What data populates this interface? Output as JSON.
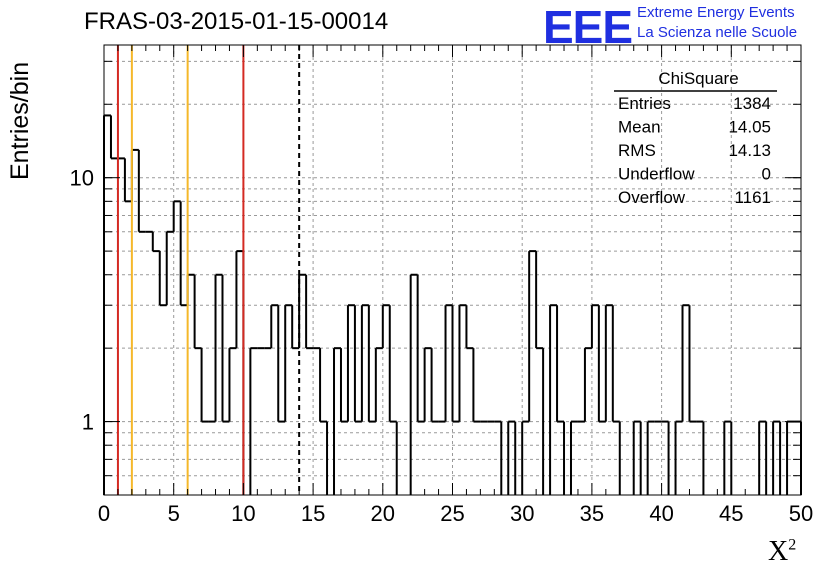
{
  "title": "FRAS-03-2015-01-15-00014",
  "logo": {
    "mark": "EEE",
    "line1": "Extreme Energy Events",
    "line2": "La Scienza nelle Scuole",
    "color": "#1f2fe0"
  },
  "stats": {
    "name": "ChiSquare",
    "rows": [
      {
        "label": "Entries",
        "value": "1384"
      },
      {
        "label": "Mean",
        "value": "14.05"
      },
      {
        "label": "RMS",
        "value": "14.13"
      },
      {
        "label": "Underflow",
        "value": "0"
      },
      {
        "label": "Overflow",
        "value": "1161"
      }
    ]
  },
  "chart_data": {
    "type": "histogram",
    "xlabel": "X",
    "xlabel_sup": "2",
    "ylabel": "Entries/bin",
    "xlim": [
      0,
      50
    ],
    "ylim": [
      0.5,
      35
    ],
    "yscale": "log",
    "bin_width": 0.5,
    "x_ticks": [
      0,
      5,
      10,
      15,
      20,
      25,
      30,
      35,
      40,
      45,
      50
    ],
    "y_ticks": [
      1,
      10
    ],
    "grid": true,
    "counts": [
      18,
      12,
      12,
      8,
      13,
      6,
      6,
      5,
      3,
      6,
      8,
      3,
      4,
      2,
      1,
      1,
      4,
      1,
      2,
      5,
      0,
      2,
      2,
      2,
      3,
      1,
      3,
      2,
      4,
      2,
      2,
      1,
      0,
      2,
      1,
      3,
      1,
      3,
      1,
      2,
      3,
      1,
      0,
      0,
      4,
      1,
      2,
      1,
      1,
      3,
      1,
      3,
      2,
      1,
      1,
      1,
      1,
      0,
      1,
      0,
      1,
      5,
      2,
      0,
      3,
      1,
      0,
      1,
      1,
      2,
      3,
      1,
      3,
      1,
      0,
      0,
      1,
      0,
      1,
      1,
      1,
      0,
      1,
      3,
      1,
      1,
      0,
      0,
      0,
      1,
      0,
      0,
      0,
      0,
      1,
      0,
      1,
      0,
      1,
      1
    ],
    "vertical_lines": [
      {
        "x": 1,
        "color": "#d42a22",
        "style": "solid"
      },
      {
        "x": 2,
        "color": "#f5b82a",
        "style": "solid"
      },
      {
        "x": 6,
        "color": "#f5b82a",
        "style": "solid"
      },
      {
        "x": 10,
        "color": "#d42a22",
        "style": "solid"
      },
      {
        "x": 14,
        "color": "#000000",
        "style": "dashed"
      }
    ]
  }
}
